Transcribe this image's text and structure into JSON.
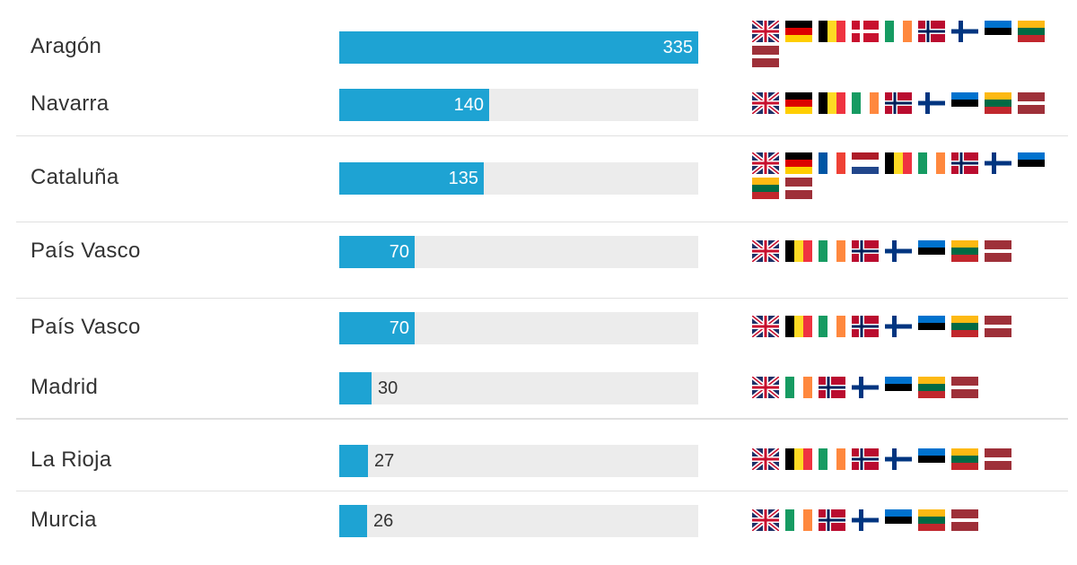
{
  "chart_data": {
    "type": "bar",
    "orientation": "horizontal",
    "categories": [
      "Aragón",
      "Navarra",
      "Cataluña",
      "País Vasco",
      "País Vasco",
      "Madrid",
      "La Rioja",
      "Murcia"
    ],
    "values": [
      335,
      140,
      135,
      70,
      70,
      30,
      27,
      26
    ],
    "value_labels": [
      "335",
      "140",
      "135",
      "70",
      "70",
      "30",
      "27",
      "26"
    ],
    "xlim": [
      0,
      335
    ],
    "grid": false,
    "legend": "none",
    "colors": {
      "bar": "#1ea3d3",
      "track": "#ececec",
      "text": "#333333"
    },
    "flag_groups": [
      [
        "uk",
        "de",
        "be",
        "dk",
        "ie",
        "no",
        "fi",
        "ee",
        "lt",
        "lv"
      ],
      [
        "uk",
        "de",
        "be",
        "ie",
        "no",
        "fi",
        "ee",
        "lt",
        "lv"
      ],
      [
        "uk",
        "de",
        "fr",
        "nl",
        "be",
        "ie",
        "no",
        "fi",
        "ee",
        "lt",
        "lv"
      ],
      [
        "uk",
        "be",
        "ie",
        "no",
        "fi",
        "ee",
        "lt",
        "lv"
      ],
      [
        "uk",
        "be",
        "ie",
        "no",
        "fi",
        "ee",
        "lt",
        "lv"
      ],
      [
        "uk",
        "ie",
        "no",
        "fi",
        "ee",
        "lt",
        "lv"
      ],
      [
        "uk",
        "be",
        "ie",
        "no",
        "fi",
        "ee",
        "lt",
        "lv"
      ],
      [
        "uk",
        "ie",
        "no",
        "fi",
        "ee",
        "lt",
        "lv"
      ]
    ]
  }
}
